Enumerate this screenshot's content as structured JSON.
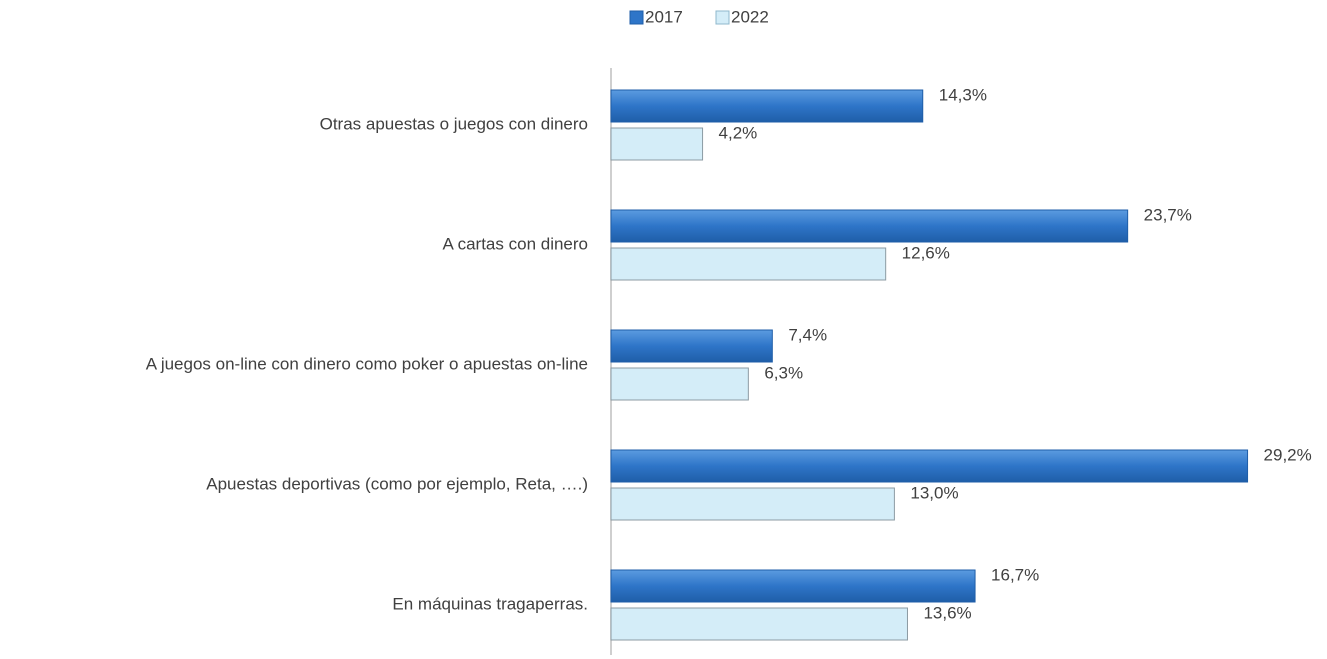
{
  "chart_data": {
    "type": "bar",
    "orientation": "horizontal",
    "categories": [
      "Otras apuestas o juegos con dinero",
      "A cartas con dinero",
      "A juegos on-line con dinero como poker o apuestas on-line",
      "Apuestas deportivas (como por ejemplo, Reta, ….)",
      "En máquinas tragaperras."
    ],
    "series": [
      {
        "name": "2017",
        "color": "#2e75c8",
        "values": [
          14.3,
          23.7,
          7.4,
          29.2,
          16.7
        ],
        "value_labels": [
          "14,3%",
          "23,7%",
          "7,4%",
          "29,2%",
          "16,7%"
        ]
      },
      {
        "name": "2022",
        "color": "#d4edf8",
        "values": [
          4.2,
          12.6,
          6.3,
          13.0,
          13.6
        ],
        "value_labels": [
          "4,2%",
          "12,6%",
          "6,3%",
          "13,0%",
          "13,6%"
        ]
      }
    ],
    "xlim": [
      0,
      30
    ],
    "legend": "top"
  }
}
